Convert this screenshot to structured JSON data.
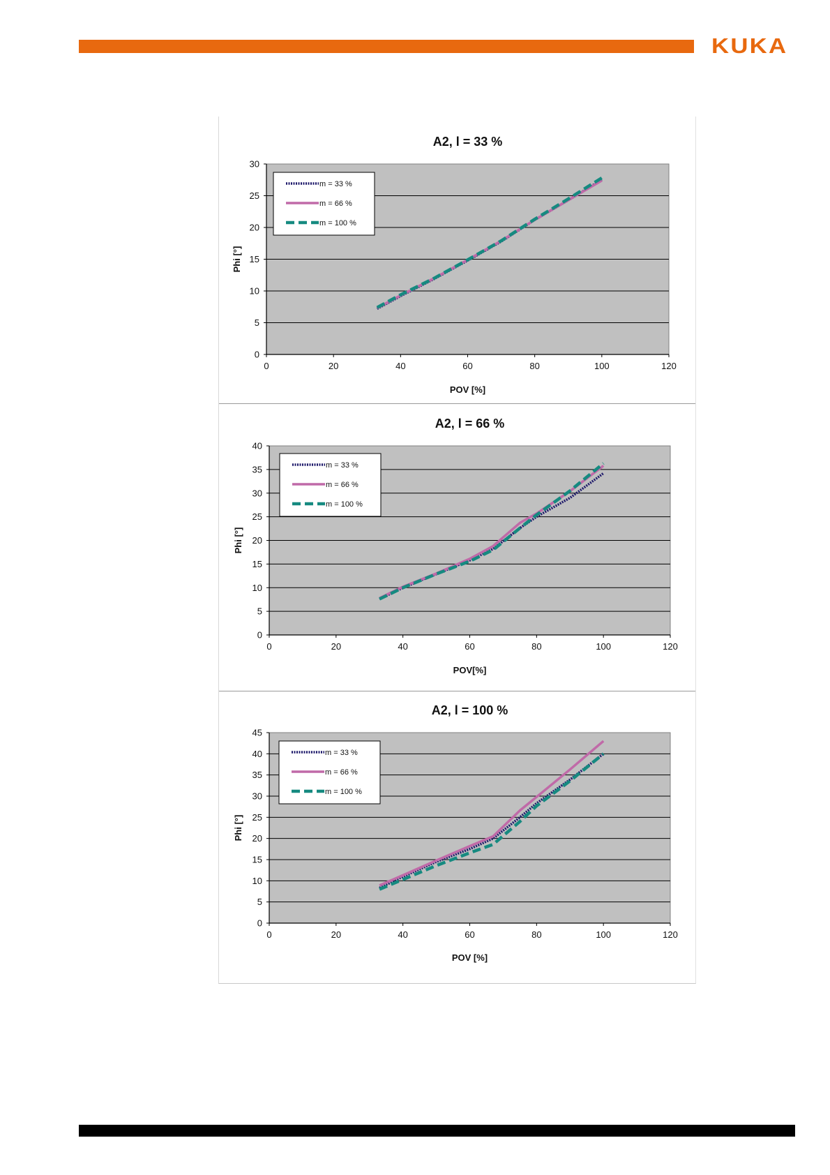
{
  "header": {
    "logo_text": "KUKA",
    "bar_color": "#e8690f",
    "logo_color": "#e8690f"
  },
  "footer": {
    "bar_color": "#000000"
  },
  "series_styles": [
    {
      "color": "#1f1a6b",
      "dash": "dotted"
    },
    {
      "color": "#c06aa8",
      "dash": "solid"
    },
    {
      "color": "#168a80",
      "dash": "dashed"
    }
  ],
  "chart_data": [
    {
      "type": "line",
      "title": "A2,  l = 33 %",
      "xlabel": "POV [%]",
      "ylabel": "Phi [°]",
      "xlim": [
        0,
        120
      ],
      "ylim": [
        0,
        30
      ],
      "xticks": [
        0,
        20,
        40,
        60,
        80,
        100,
        120
      ],
      "yticks": [
        0,
        5,
        10,
        15,
        20,
        25,
        30
      ],
      "grid": "horizontal",
      "legend": "top-left",
      "series": [
        {
          "name": "m = 33 %",
          "x": [
            33,
            40,
            50,
            60,
            70,
            80,
            90,
            100
          ],
          "y": [
            7.2,
            9.2,
            11.9,
            14.8,
            17.8,
            21.2,
            24.3,
            27.5
          ]
        },
        {
          "name": "m = 66 %",
          "x": [
            33,
            40,
            50,
            60,
            70,
            80,
            90,
            100
          ],
          "y": [
            7.3,
            9.3,
            12.0,
            14.9,
            17.9,
            21.2,
            24.3,
            27.4
          ]
        },
        {
          "name": "m = 100 %",
          "x": [
            33,
            40,
            50,
            60,
            70,
            80,
            90,
            100
          ],
          "y": [
            7.4,
            9.4,
            12.0,
            14.9,
            17.9,
            21.3,
            24.5,
            27.8
          ]
        }
      ]
    },
    {
      "type": "line",
      "title": "A2,  l = 66 %",
      "xlabel": "POV[%]",
      "ylabel": "Phi [°]",
      "xlim": [
        0,
        120
      ],
      "ylim": [
        0,
        40
      ],
      "xticks": [
        0,
        20,
        40,
        60,
        80,
        100,
        120
      ],
      "yticks": [
        0,
        5,
        10,
        15,
        20,
        25,
        30,
        35,
        40
      ],
      "grid": "horizontal",
      "legend": "top-left",
      "series": [
        {
          "name": "m = 33 %",
          "x": [
            33,
            40,
            50,
            60,
            67,
            75,
            80,
            90,
            100
          ],
          "y": [
            7.6,
            10.0,
            12.9,
            15.8,
            18.2,
            22.6,
            25.0,
            29.0,
            34.2
          ]
        },
        {
          "name": "m = 66 %",
          "x": [
            33,
            40,
            50,
            60,
            67,
            75,
            80,
            90,
            100
          ],
          "y": [
            7.8,
            10.2,
            13.0,
            16.1,
            18.8,
            23.7,
            25.7,
            30.4,
            35.8
          ]
        },
        {
          "name": "m = 100 %",
          "x": [
            33,
            40,
            50,
            60,
            67,
            75,
            80,
            90,
            100
          ],
          "y": [
            7.6,
            10.0,
            12.9,
            15.6,
            18.0,
            22.6,
            25.4,
            30.5,
            36.3
          ]
        }
      ]
    },
    {
      "type": "line",
      "title": "A2,  l = 100 %",
      "xlabel": "POV [%]",
      "ylabel": "Phi [°]",
      "xlim": [
        0,
        120
      ],
      "ylim": [
        0,
        45
      ],
      "xticks": [
        0,
        20,
        40,
        60,
        80,
        100,
        120
      ],
      "yticks": [
        0,
        5,
        10,
        15,
        20,
        25,
        30,
        35,
        40,
        45
      ],
      "grid": "horizontal",
      "legend": "top-left",
      "series": [
        {
          "name": "m = 33 %",
          "x": [
            33,
            40,
            50,
            60,
            67,
            75,
            80,
            90,
            100
          ],
          "y": [
            8.3,
            11.0,
            14.5,
            17.5,
            20.0,
            25.0,
            28.3,
            33.9,
            40.0
          ]
        },
        {
          "name": "m = 66 %",
          "x": [
            33,
            40,
            50,
            60,
            67,
            75,
            80,
            90,
            100
          ],
          "y": [
            8.9,
            11.3,
            14.8,
            18.2,
            20.5,
            26.6,
            29.8,
            36.3,
            43.0
          ]
        },
        {
          "name": "m = 100 %",
          "x": [
            33,
            40,
            50,
            60,
            67,
            75,
            80,
            90,
            100
          ],
          "y": [
            8.0,
            10.3,
            13.6,
            16.6,
            18.6,
            24.0,
            27.7,
            33.6,
            40.0
          ]
        }
      ]
    }
  ]
}
